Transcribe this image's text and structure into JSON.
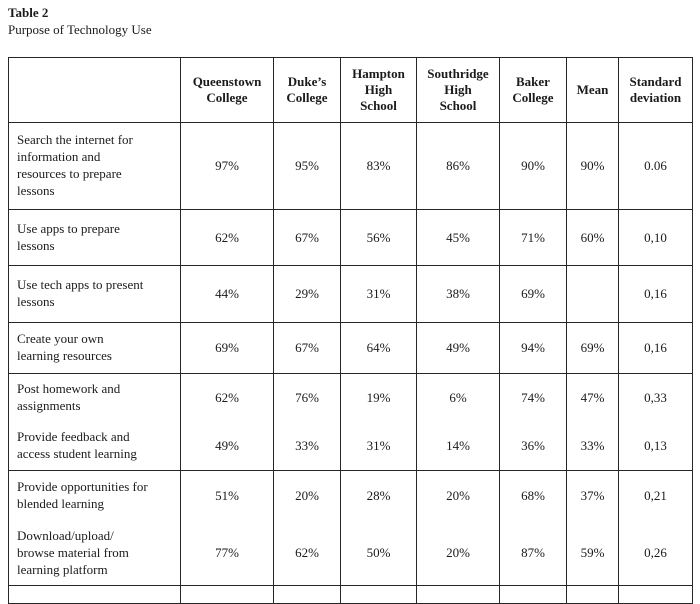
{
  "title": "Table 2",
  "subtitle": "Purpose of Technology Use",
  "table": {
    "columns": [
      "",
      "Queenstown\nCollege",
      "Duke’s\nCollege",
      "Hampton\nHigh\nSchool",
      "Southridge\nHigh\nSchool",
      "Baker\nCollege",
      "Mean",
      "Standard\ndeviation"
    ],
    "rows": [
      {
        "label": "Search the internet for\ninformation and\nresources to prepare\nlessons",
        "values": [
          "97%",
          "95%",
          "83%",
          "86%",
          "90%",
          "90%",
          "0.06"
        ],
        "divider_after": true
      },
      {
        "label": "Use apps to prepare\nlessons",
        "values": [
          "62%",
          "67%",
          "56%",
          "45%",
          "71%",
          "60%",
          "0,10"
        ],
        "divider_after": true
      },
      {
        "label": "Use tech apps to present\nlessons",
        "values": [
          "44%",
          "29%",
          "31%",
          "38%",
          "69%",
          "",
          "0,16"
        ],
        "divider_after": true
      },
      {
        "label": "Create your own\nlearning resources",
        "values": [
          "69%",
          "67%",
          "64%",
          "49%",
          "94%",
          "69%",
          "0,16"
        ],
        "divider_after": true
      },
      {
        "label": "Post homework and\nassignments",
        "values": [
          "62%",
          "76%",
          "19%",
          "6%",
          "74%",
          "47%",
          "0,33"
        ],
        "divider_after": false
      },
      {
        "label": "Provide feedback and\naccess student learning",
        "values": [
          "49%",
          "33%",
          "31%",
          "14%",
          "36%",
          "33%",
          "0,13"
        ],
        "divider_after": true
      },
      {
        "label": "Provide opportunities for\nblended learning",
        "values": [
          "51%",
          "20%",
          "28%",
          "20%",
          "68%",
          "37%",
          "0,21"
        ],
        "divider_after": false
      },
      {
        "label": "Download/upload/\nbrowse material from\nlearning platform",
        "values": [
          "77%",
          "62%",
          "50%",
          "20%",
          "87%",
          "59%",
          "0,26"
        ],
        "divider_after": true
      }
    ]
  }
}
